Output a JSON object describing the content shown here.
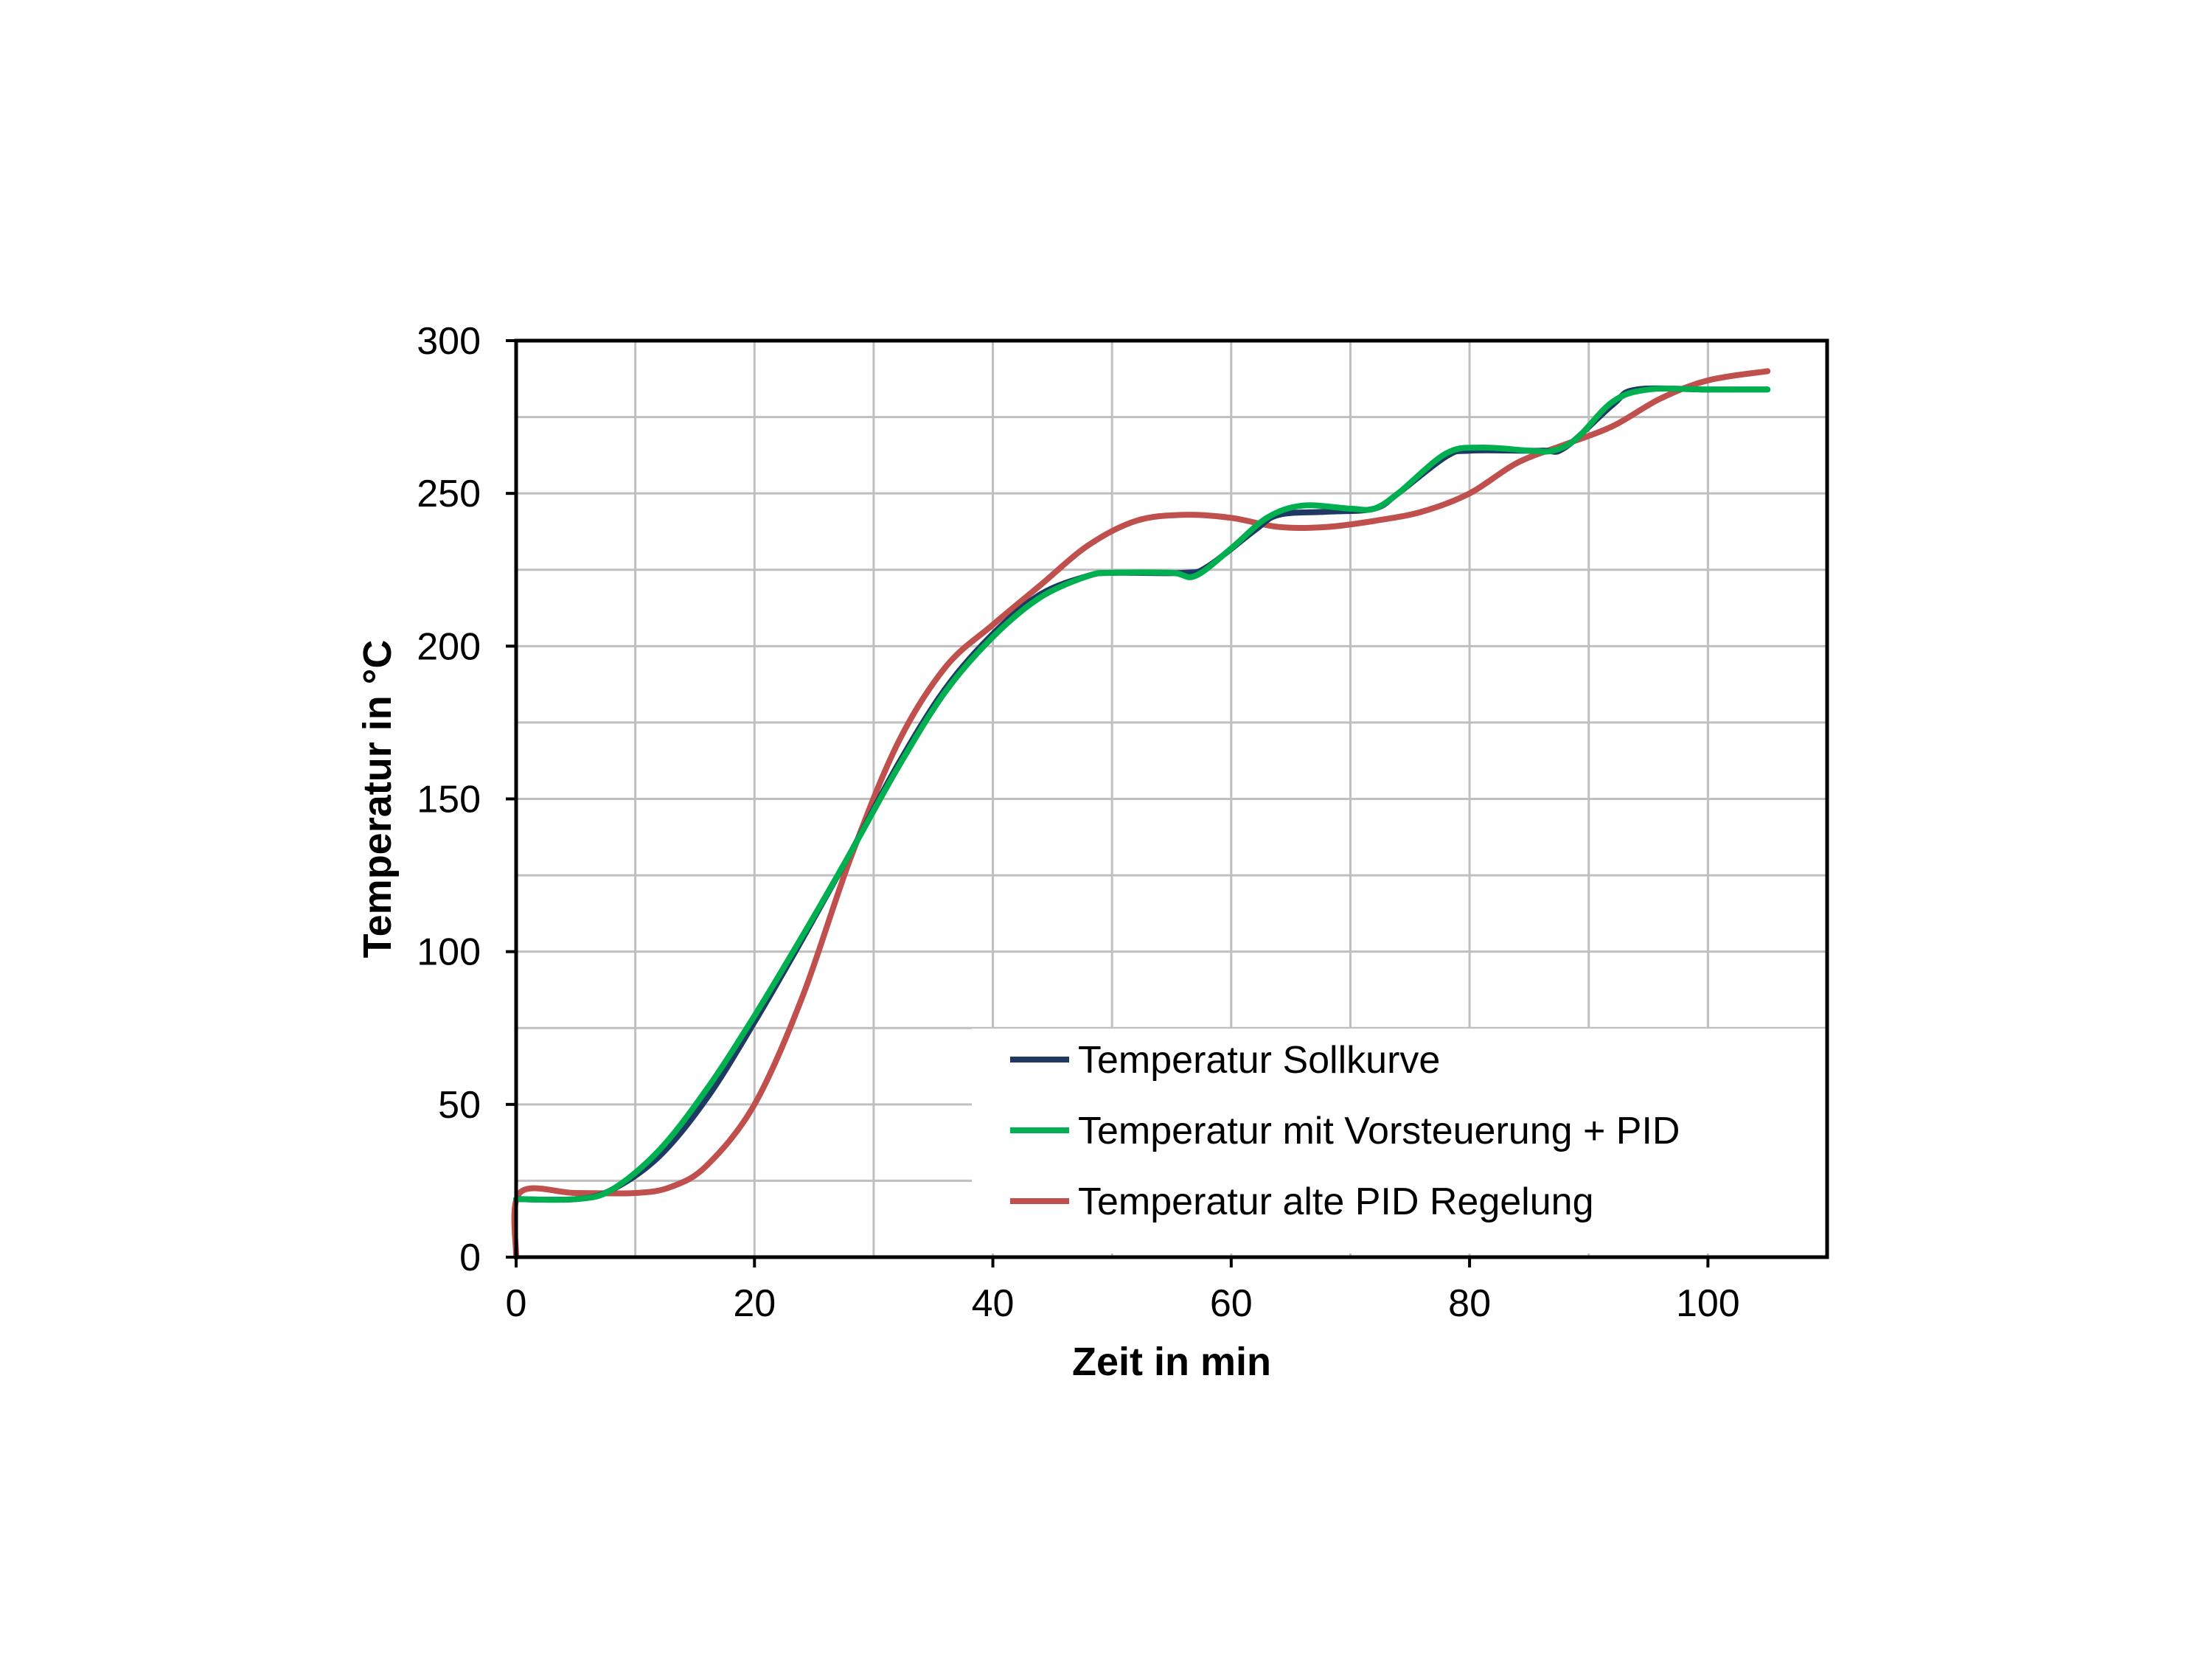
{
  "chart_data": {
    "type": "line",
    "title": "",
    "xlabel": "Zeit in min",
    "ylabel": "Temperatur  in °C",
    "xlim": [
      0,
      110
    ],
    "ylim": [
      0,
      300
    ],
    "x_ticks": [
      "0",
      "20",
      "40",
      "60",
      "80",
      "100"
    ],
    "y_ticks": [
      "0",
      "50",
      "100",
      "150",
      "200",
      "250",
      "300"
    ],
    "grid": true,
    "legend_position": "bottom-right",
    "series": [
      {
        "name": "Temperatur Sollkurve",
        "color": "#1F3864",
        "points": [
          [
            0,
            19
          ],
          [
            5,
            19
          ],
          [
            8,
            22
          ],
          [
            12,
            33
          ],
          [
            16,
            52
          ],
          [
            20,
            77
          ],
          [
            24,
            104
          ],
          [
            28,
            132
          ],
          [
            32,
            161
          ],
          [
            36,
            186
          ],
          [
            40,
            204
          ],
          [
            44,
            217
          ],
          [
            48,
            223
          ],
          [
            50,
            224
          ],
          [
            56,
            224
          ],
          [
            58,
            226
          ],
          [
            62,
            238
          ],
          [
            64,
            243
          ],
          [
            68,
            244
          ],
          [
            72,
            245
          ],
          [
            74,
            250
          ],
          [
            78,
            262
          ],
          [
            80,
            264
          ],
          [
            86,
            264
          ],
          [
            88,
            265
          ],
          [
            92,
            279
          ],
          [
            94,
            284
          ],
          [
            100,
            284
          ],
          [
            105,
            284
          ]
        ]
      },
      {
        "name": "Temperatur mit Vorsteuerung + PID",
        "color": "#00B050",
        "points": [
          [
            0,
            19
          ],
          [
            5,
            19
          ],
          [
            8,
            22
          ],
          [
            12,
            35
          ],
          [
            16,
            55
          ],
          [
            20,
            79
          ],
          [
            24,
            105
          ],
          [
            28,
            132
          ],
          [
            32,
            160
          ],
          [
            36,
            185
          ],
          [
            40,
            203
          ],
          [
            44,
            216
          ],
          [
            48,
            223
          ],
          [
            50,
            224
          ],
          [
            55,
            224
          ],
          [
            57,
            223
          ],
          [
            60,
            232
          ],
          [
            63,
            242
          ],
          [
            66,
            246
          ],
          [
            70,
            245
          ],
          [
            72,
            245
          ],
          [
            74,
            250
          ],
          [
            78,
            263
          ],
          [
            81,
            265
          ],
          [
            85,
            264
          ],
          [
            87,
            264
          ],
          [
            89,
            268
          ],
          [
            92,
            280
          ],
          [
            95,
            284
          ],
          [
            100,
            284
          ],
          [
            105,
            284
          ]
        ]
      },
      {
        "name": "Temperatur alte PID Regelung",
        "color": "#C0504D",
        "points": [
          [
            0,
            0
          ],
          [
            0.3,
            21
          ],
          [
            5,
            21
          ],
          [
            10,
            21
          ],
          [
            13,
            23
          ],
          [
            16,
            30
          ],
          [
            20,
            50
          ],
          [
            24,
            85
          ],
          [
            28,
            130
          ],
          [
            32,
            168
          ],
          [
            36,
            193
          ],
          [
            40,
            207
          ],
          [
            44,
            220
          ],
          [
            48,
            233
          ],
          [
            52,
            241
          ],
          [
            56,
            243
          ],
          [
            60,
            242
          ],
          [
            64,
            239
          ],
          [
            68,
            239
          ],
          [
            72,
            241
          ],
          [
            76,
            244
          ],
          [
            80,
            250
          ],
          [
            84,
            260
          ],
          [
            88,
            266
          ],
          [
            92,
            272
          ],
          [
            96,
            281
          ],
          [
            100,
            287
          ],
          [
            105,
            290
          ]
        ]
      }
    ]
  }
}
